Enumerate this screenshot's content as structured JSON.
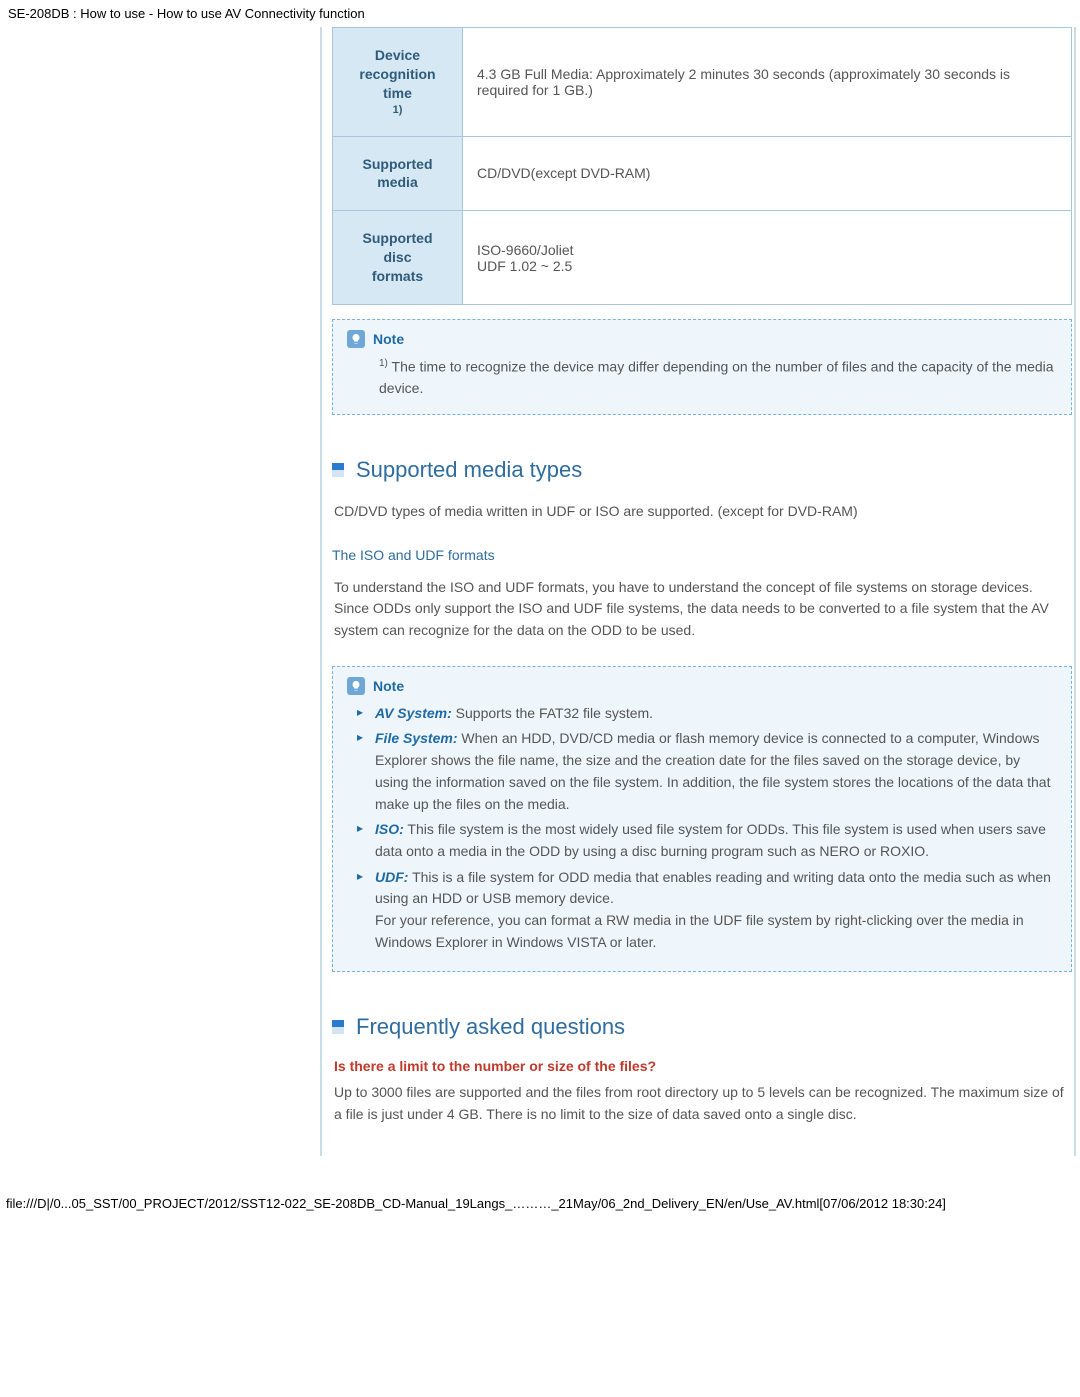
{
  "page_header": "SE-208DB : How to use - How to use AV Connectivity function",
  "spec_table": {
    "rows": [
      {
        "label_line1": "Device",
        "label_line2": "recognition time",
        "label_sup": "1)",
        "value": "4.3 GB Full Media: Approximately 2 minutes 30 seconds (approximately 30 seconds is required for 1 GB.)"
      },
      {
        "label_line1": "Supported",
        "label_line2": "media",
        "label_sup": "",
        "value": "CD/DVD(except DVD-RAM)"
      },
      {
        "label_line1": "Supported disc",
        "label_line2": "formats",
        "label_sup": "",
        "value": "ISO-9660/Joliet\nUDF 1.02 ~ 2.5"
      }
    ]
  },
  "note1": {
    "title": "Note",
    "sup": "1)",
    "text": " The time to recognize the device may differ depending on the number of files and the capacity of the media device."
  },
  "section_media": {
    "title": "Supported media types",
    "intro": "CD/DVD types of media written in UDF or ISO are supported. (except for DVD-RAM)",
    "sub_title": "The ISO and UDF formats",
    "para": "To understand the ISO and UDF formats, you have to understand the concept of file systems on storage devices.\nSince ODDs only support the ISO and UDF file systems, the data needs to be converted to a file system that the AV system can recognize for the data on the ODD to be used."
  },
  "note2": {
    "title": "Note",
    "items": [
      {
        "term": "AV System:",
        "text": " Supports the FAT32 file system."
      },
      {
        "term": "File System:",
        "text": " When an HDD, DVD/CD media or flash memory device is connected to a computer, Windows Explorer shows the file name, the size and the creation date for the files saved on the storage device, by using the information saved on the file system. In addition, the file system stores the locations of the data that make up the files on the media."
      },
      {
        "term": "ISO:",
        "text": " This file system is the most widely used file system for ODDs. This file system is used when users save data onto a media in the ODD by using a disc burning program such as NERO or ROXIO."
      },
      {
        "term": "UDF:",
        "text": " This is a file system for ODD media that enables reading and writing data onto the media such as when using an HDD or USB memory device.\nFor your reference, you can format a RW media in the UDF file system by right-clicking over the media in Windows Explorer in Windows VISTA or later."
      }
    ]
  },
  "section_faq": {
    "title": "Frequently asked questions",
    "q1": "Is there a limit to the number or size of the files?",
    "a1": "Up to 3000 files are supported and the files from root directory up to 5 levels can be recognized. The maximum size of a file is just under 4 GB. There is no limit to the size of data saved onto a single disc."
  },
  "footer_path": "file:///D|/0...05_SST/00_PROJECT/2012/SST12-022_SE-208DB_CD-Manual_19Langs_………_21May/06_2nd_Delivery_EN/en/Use_AV.html[07/06/2012 18:30:24]"
}
